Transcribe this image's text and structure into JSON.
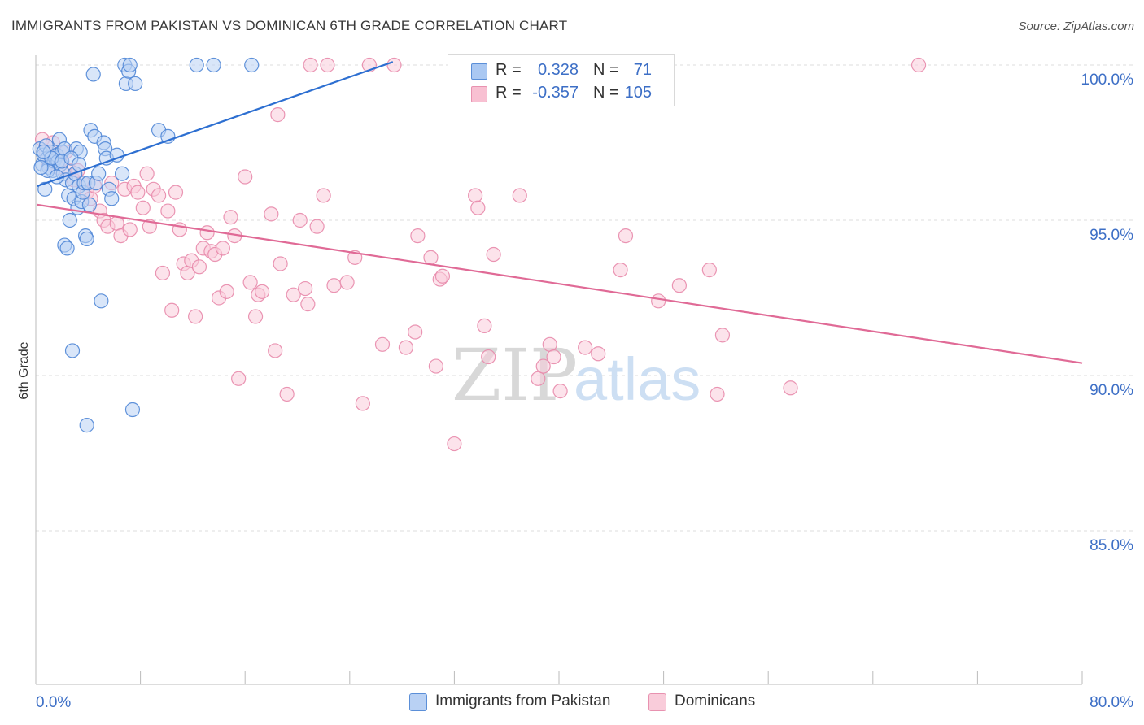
{
  "header": {
    "title": "IMMIGRANTS FROM PAKISTAN VS DOMINICAN 6TH GRADE CORRELATION CHART",
    "source": "Source: ZipAtlas.com"
  },
  "watermark": {
    "zip": "ZIP",
    "atlas": "atlas"
  },
  "legend_stats": [
    {
      "r_label": "R =",
      "r_value": "0.328",
      "n_label": "N =",
      "n_value": "71",
      "fill": "#aac8f2",
      "stroke": "#5b8fd8"
    },
    {
      "r_label": "R =",
      "r_value": "-0.357",
      "n_label": "N =",
      "n_value": "105",
      "fill": "#f8c0d2",
      "stroke": "#e892b0"
    }
  ],
  "colors": {
    "pakistan_fill": "#b9d1f4",
    "pakistan_stroke": "#4f86d6",
    "pakistan_line": "#2d6fd1",
    "dominican_fill": "#f9ccda",
    "dominican_stroke": "#e88aab",
    "dominican_line": "#e06a96",
    "tick_label": "#3d6fc6",
    "grid": "#dddddd"
  },
  "chart_data": {
    "type": "scatter",
    "title": "IMMIGRANTS FROM PAKISTAN VS DOMINICAN 6TH GRADE CORRELATION CHART",
    "xlabel": "",
    "ylabel": "6th Grade",
    "xlim": [
      0,
      80
    ],
    "ylim": [
      80.5,
      100.8
    ],
    "x_tick_labels": [
      "0.0%",
      "80.0%"
    ],
    "y_ticks": [
      85,
      90,
      95,
      100
    ],
    "y_tick_labels": [
      "85.0%",
      "90.0%",
      "95.0%",
      "100.0%"
    ],
    "grid": true,
    "legend_position": "bottom",
    "series": [
      {
        "name": "Immigrants from Pakistan",
        "R": 0.328,
        "N": 71,
        "trend": {
          "x0": 0.1,
          "y0": 96.1,
          "x1": 27.3,
          "y1": 100.1
        },
        "points": [
          [
            0.3,
            97.3
          ],
          [
            0.5,
            96.8
          ],
          [
            0.6,
            97.1
          ],
          [
            0.7,
            96.0
          ],
          [
            0.8,
            97.4
          ],
          [
            0.9,
            97.0
          ],
          [
            1.0,
            96.7
          ],
          [
            1.1,
            97.2
          ],
          [
            1.3,
            96.6
          ],
          [
            1.4,
            96.9
          ],
          [
            1.5,
            97.0
          ],
          [
            1.6,
            97.1
          ],
          [
            1.7,
            96.9
          ],
          [
            1.8,
            97.6
          ],
          [
            1.9,
            96.8
          ],
          [
            2.0,
            97.2
          ],
          [
            2.1,
            96.5
          ],
          [
            2.2,
            97.3
          ],
          [
            2.3,
            96.3
          ],
          [
            2.5,
            95.8
          ],
          [
            2.6,
            95.0
          ],
          [
            2.8,
            96.2
          ],
          [
            2.9,
            95.7
          ],
          [
            3.0,
            96.5
          ],
          [
            3.1,
            97.3
          ],
          [
            3.2,
            95.4
          ],
          [
            3.3,
            96.1
          ],
          [
            3.4,
            97.2
          ],
          [
            3.5,
            95.6
          ],
          [
            3.6,
            95.9
          ],
          [
            3.7,
            96.2
          ],
          [
            3.8,
            94.5
          ],
          [
            3.9,
            94.4
          ],
          [
            4.0,
            96.2
          ],
          [
            4.1,
            95.5
          ],
          [
            4.2,
            97.9
          ],
          [
            4.4,
            99.7
          ],
          [
            4.5,
            97.7
          ],
          [
            4.6,
            96.2
          ],
          [
            4.8,
            96.5
          ],
          [
            5.0,
            92.4
          ],
          [
            5.2,
            97.5
          ],
          [
            5.3,
            97.3
          ],
          [
            5.4,
            97.0
          ],
          [
            5.6,
            96.0
          ],
          [
            5.8,
            95.7
          ],
          [
            6.2,
            97.1
          ],
          [
            6.6,
            96.5
          ],
          [
            6.8,
            100.0
          ],
          [
            6.9,
            99.4
          ],
          [
            7.1,
            99.8
          ],
          [
            7.2,
            100.0
          ],
          [
            7.6,
            99.4
          ],
          [
            9.4,
            97.9
          ],
          [
            10.1,
            97.7
          ],
          [
            12.3,
            100.0
          ],
          [
            13.6,
            100.0
          ],
          [
            16.5,
            100.0
          ],
          [
            2.2,
            94.2
          ],
          [
            2.4,
            94.1
          ],
          [
            2.8,
            90.8
          ],
          [
            3.9,
            88.4
          ],
          [
            7.4,
            88.9
          ],
          [
            0.9,
            96.6
          ],
          [
            1.2,
            97.0
          ],
          [
            1.6,
            96.4
          ],
          [
            2.0,
            96.9
          ],
          [
            2.7,
            97.0
          ],
          [
            3.3,
            96.8
          ],
          [
            0.4,
            96.7
          ],
          [
            0.6,
            97.2
          ]
        ]
      },
      {
        "name": "Dominicans",
        "R": -0.357,
        "N": 105,
        "trend": {
          "x0": 0.1,
          "y0": 95.5,
          "x1": 80.0,
          "y1": 90.4
        },
        "points": [
          [
            0.5,
            97.6
          ],
          [
            0.8,
            97.2
          ],
          [
            1.0,
            96.8
          ],
          [
            1.3,
            97.5
          ],
          [
            1.5,
            97.0
          ],
          [
            1.7,
            96.7
          ],
          [
            2.0,
            96.9
          ],
          [
            2.3,
            97.2
          ],
          [
            2.6,
            96.6
          ],
          [
            2.9,
            96.3
          ],
          [
            3.2,
            96.6
          ],
          [
            3.6,
            96.2
          ],
          [
            3.9,
            95.9
          ],
          [
            4.2,
            95.7
          ],
          [
            4.5,
            96.1
          ],
          [
            4.9,
            95.3
          ],
          [
            5.2,
            95.0
          ],
          [
            5.5,
            94.8
          ],
          [
            5.8,
            96.2
          ],
          [
            6.2,
            94.9
          ],
          [
            6.5,
            94.5
          ],
          [
            6.8,
            96.0
          ],
          [
            7.2,
            94.7
          ],
          [
            7.5,
            96.1
          ],
          [
            7.8,
            95.9
          ],
          [
            8.2,
            95.4
          ],
          [
            8.5,
            96.5
          ],
          [
            8.7,
            94.8
          ],
          [
            9.0,
            96.0
          ],
          [
            9.4,
            95.8
          ],
          [
            9.7,
            93.3
          ],
          [
            10.1,
            95.3
          ],
          [
            10.4,
            92.1
          ],
          [
            10.7,
            95.9
          ],
          [
            11.0,
            94.7
          ],
          [
            11.3,
            93.6
          ],
          [
            11.6,
            93.3
          ],
          [
            11.9,
            93.7
          ],
          [
            12.2,
            91.9
          ],
          [
            12.5,
            93.5
          ],
          [
            12.8,
            94.1
          ],
          [
            13.1,
            94.6
          ],
          [
            13.4,
            94.0
          ],
          [
            13.7,
            93.9
          ],
          [
            14.0,
            92.5
          ],
          [
            14.3,
            94.1
          ],
          [
            14.6,
            92.7
          ],
          [
            14.9,
            95.1
          ],
          [
            15.2,
            94.5
          ],
          [
            15.5,
            89.9
          ],
          [
            16.0,
            96.4
          ],
          [
            16.4,
            93.0
          ],
          [
            16.8,
            91.9
          ],
          [
            17.0,
            92.6
          ],
          [
            17.3,
            92.7
          ],
          [
            18.0,
            95.2
          ],
          [
            18.3,
            90.8
          ],
          [
            18.5,
            98.4
          ],
          [
            18.7,
            93.6
          ],
          [
            19.2,
            89.4
          ],
          [
            19.7,
            92.6
          ],
          [
            20.2,
            95.0
          ],
          [
            20.6,
            92.8
          ],
          [
            20.8,
            92.3
          ],
          [
            21.0,
            100.0
          ],
          [
            21.5,
            94.8
          ],
          [
            22.0,
            95.8
          ],
          [
            22.3,
            100.0
          ],
          [
            22.8,
            92.9
          ],
          [
            23.8,
            93.0
          ],
          [
            24.4,
            93.8
          ],
          [
            25.0,
            89.1
          ],
          [
            25.5,
            100.0
          ],
          [
            26.5,
            91.0
          ],
          [
            27.4,
            100.0
          ],
          [
            28.3,
            90.9
          ],
          [
            29.0,
            91.4
          ],
          [
            29.2,
            94.5
          ],
          [
            30.2,
            93.8
          ],
          [
            30.6,
            90.3
          ],
          [
            30.9,
            93.1
          ],
          [
            31.1,
            93.2
          ],
          [
            32.0,
            87.8
          ],
          [
            33.1,
            100.0
          ],
          [
            33.6,
            95.8
          ],
          [
            33.8,
            95.4
          ],
          [
            34.3,
            91.6
          ],
          [
            34.6,
            90.6
          ],
          [
            35.0,
            93.9
          ],
          [
            37.0,
            95.8
          ],
          [
            38.4,
            89.9
          ],
          [
            38.8,
            90.3
          ],
          [
            39.3,
            91.0
          ],
          [
            39.6,
            90.6
          ],
          [
            40.1,
            89.5
          ],
          [
            42.0,
            90.9
          ],
          [
            43.0,
            90.7
          ],
          [
            44.7,
            93.4
          ],
          [
            45.1,
            94.5
          ],
          [
            47.6,
            92.4
          ],
          [
            49.2,
            92.9
          ],
          [
            51.5,
            93.4
          ],
          [
            52.1,
            89.4
          ],
          [
            52.5,
            91.3
          ],
          [
            57.7,
            89.6
          ],
          [
            67.5,
            100.0
          ]
        ]
      }
    ]
  },
  "bottom_legend": [
    {
      "label": "Immigrants from Pakistan"
    },
    {
      "label": "Dominicans"
    }
  ]
}
